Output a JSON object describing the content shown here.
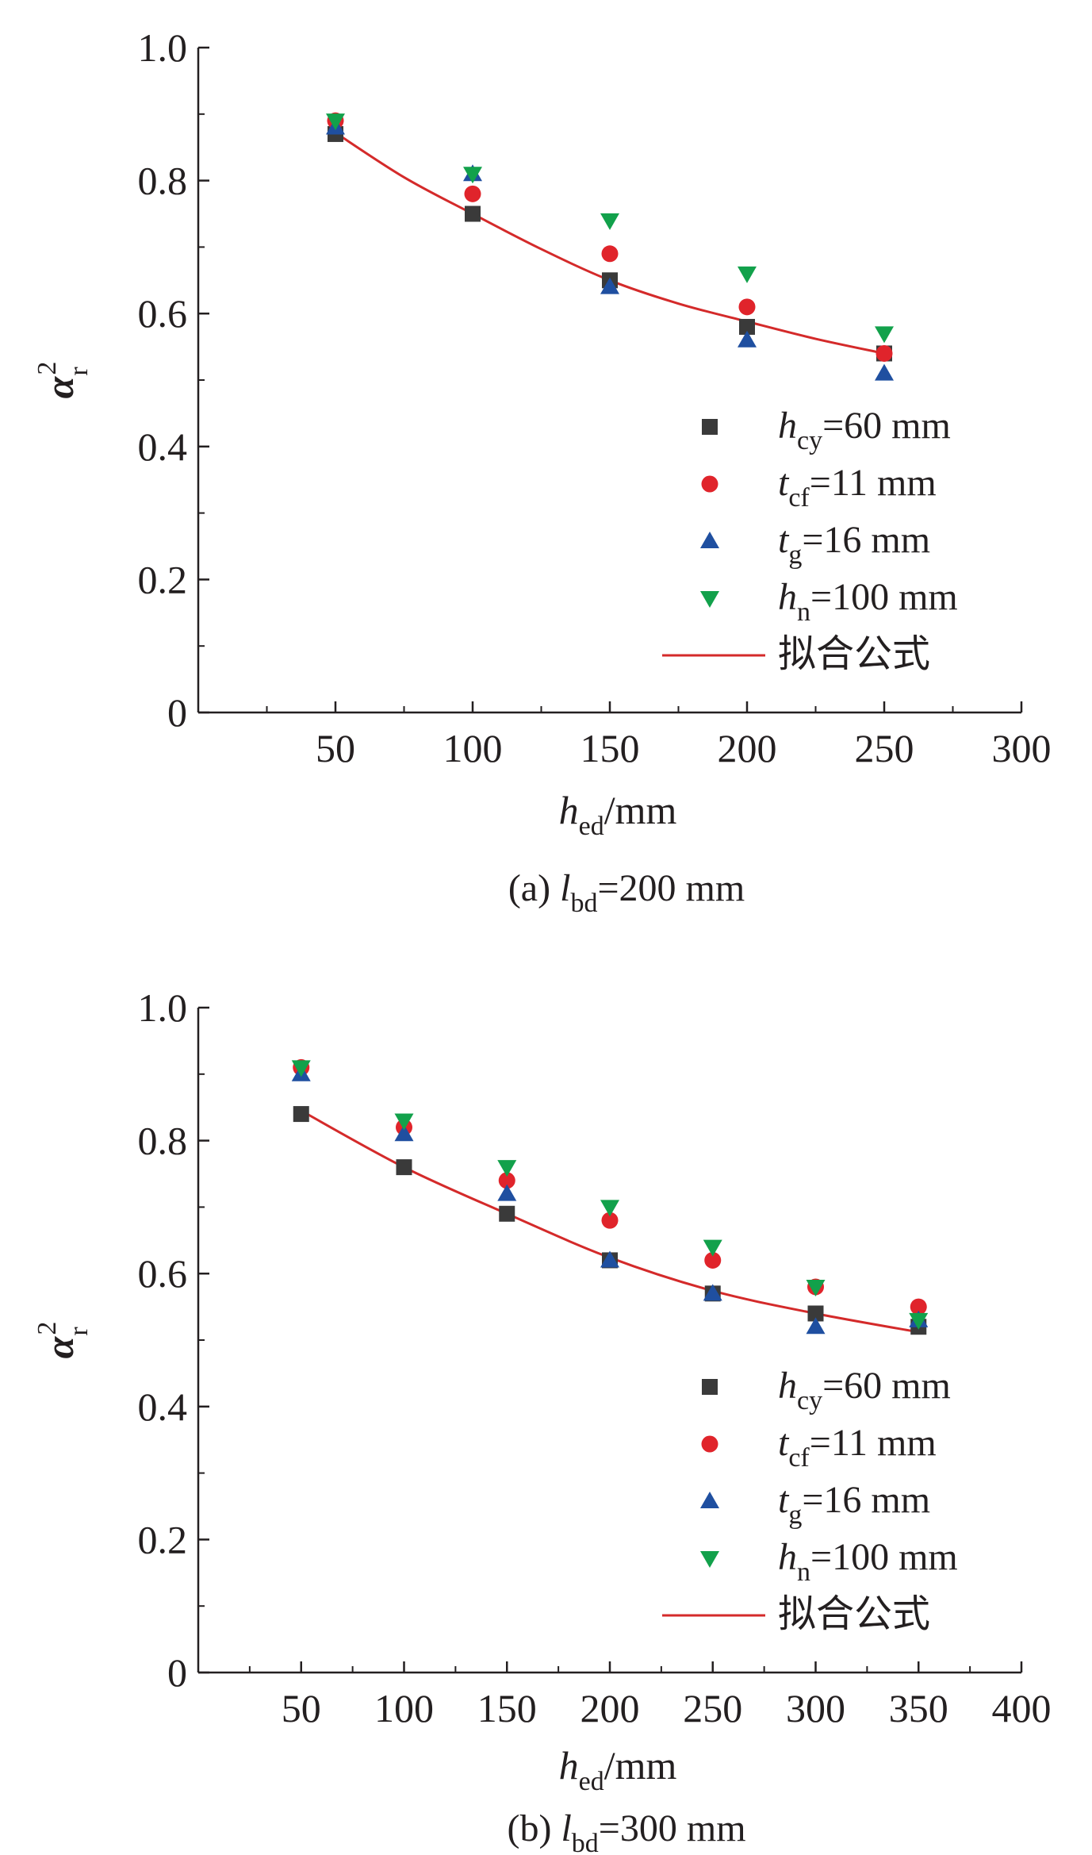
{
  "chart_data": [
    {
      "type": "scatter",
      "caption": {
        "prefix": "(a) ",
        "var": "l",
        "sub": "bd",
        "suffix": "=200 mm"
      },
      "xlabel": {
        "var": "h",
        "sub": "ed",
        "unit": "/mm"
      },
      "ylabel": {
        "var": "α",
        "sup": "2",
        "sub": "r"
      },
      "xlim": [
        0,
        300
      ],
      "ylim": [
        0,
        1.0
      ],
      "xticks": [
        50,
        100,
        150,
        200,
        250,
        300
      ],
      "yticks": [
        0,
        0.2,
        0.4,
        0.6,
        0.8,
        1.0
      ],
      "ytick_labels": [
        "0",
        "0.2",
        "0.4",
        "0.6",
        "0.8",
        "1.0"
      ],
      "grid": false,
      "legend_position": "bottom-right",
      "series": [
        {
          "legend": {
            "var": "h",
            "sub": "cy",
            "rest": "=60 mm"
          },
          "marker": "square",
          "color": "#3a3a3a",
          "x": [
            50,
            100,
            150,
            200,
            250
          ],
          "y": [
            0.87,
            0.75,
            0.65,
            0.58,
            0.54
          ]
        },
        {
          "legend": {
            "var": "t",
            "sub": "cf",
            "rest": "=11 mm"
          },
          "marker": "circle",
          "color": "#e0242b",
          "x": [
            50,
            100,
            150,
            200,
            250
          ],
          "y": [
            0.89,
            0.78,
            0.69,
            0.61,
            0.54
          ]
        },
        {
          "legend": {
            "var": "t",
            "sub": "g",
            "rest": "=16 mm"
          },
          "marker": "triangle-up",
          "color": "#1f4fa0",
          "x": [
            50,
            100,
            150,
            200,
            250
          ],
          "y": [
            0.88,
            0.81,
            0.64,
            0.56,
            0.51
          ]
        },
        {
          "legend": {
            "var": "h",
            "sub": "n",
            "rest": "=100 mm"
          },
          "marker": "triangle-down",
          "color": "#12a14b",
          "x": [
            50,
            100,
            150,
            200,
            250
          ],
          "y": [
            0.89,
            0.81,
            0.74,
            0.66,
            0.57
          ]
        }
      ],
      "fit": {
        "label": "拟合公式",
        "color": "#d42a2a",
        "x": [
          50,
          75,
          100,
          125,
          150,
          175,
          200,
          225,
          250
        ],
        "y": [
          0.872,
          0.805,
          0.75,
          0.697,
          0.65,
          0.615,
          0.588,
          0.562,
          0.54
        ]
      }
    },
    {
      "type": "scatter",
      "caption": {
        "prefix": "(b) ",
        "var": "l",
        "sub": "bd",
        "suffix": "=300 mm"
      },
      "xlabel": {
        "var": "h",
        "sub": "ed",
        "unit": "/mm"
      },
      "ylabel": {
        "var": "α",
        "sup": "2",
        "sub": "r"
      },
      "xlim": [
        0,
        400
      ],
      "ylim": [
        0,
        1.0
      ],
      "xticks": [
        50,
        100,
        150,
        200,
        250,
        300,
        350,
        400
      ],
      "yticks": [
        0,
        0.2,
        0.4,
        0.6,
        0.8,
        1.0
      ],
      "ytick_labels": [
        "0",
        "0.2",
        "0.4",
        "0.6",
        "0.8",
        "1.0"
      ],
      "grid": false,
      "legend_position": "bottom-right",
      "series": [
        {
          "legend": {
            "var": "h",
            "sub": "cy",
            "rest": "=60 mm"
          },
          "marker": "square",
          "color": "#3a3a3a",
          "x": [
            50,
            100,
            150,
            200,
            250,
            300,
            350
          ],
          "y": [
            0.84,
            0.76,
            0.69,
            0.62,
            0.57,
            0.54,
            0.52
          ]
        },
        {
          "legend": {
            "var": "t",
            "sub": "cf",
            "rest": "=11 mm"
          },
          "marker": "circle",
          "color": "#e0242b",
          "x": [
            50,
            100,
            150,
            200,
            250,
            300,
            350
          ],
          "y": [
            0.91,
            0.82,
            0.74,
            0.68,
            0.62,
            0.58,
            0.55
          ]
        },
        {
          "legend": {
            "var": "t",
            "sub": "g",
            "rest": "=16 mm"
          },
          "marker": "triangle-up",
          "color": "#1f4fa0",
          "x": [
            50,
            100,
            150,
            200,
            250,
            300,
            350
          ],
          "y": [
            0.9,
            0.81,
            0.72,
            0.62,
            0.57,
            0.52,
            0.53
          ]
        },
        {
          "legend": {
            "var": "h",
            "sub": "n",
            "rest": "=100 mm"
          },
          "marker": "triangle-down",
          "color": "#12a14b",
          "x": [
            50,
            100,
            150,
            200,
            250,
            300,
            350
          ],
          "y": [
            0.91,
            0.83,
            0.76,
            0.7,
            0.64,
            0.58,
            0.53
          ]
        }
      ],
      "fit": {
        "label": "拟合公式",
        "color": "#d42a2a",
        "x": [
          50,
          100,
          150,
          200,
          250,
          300,
          350
        ],
        "y": [
          0.845,
          0.76,
          0.69,
          0.624,
          0.574,
          0.54,
          0.512
        ]
      }
    }
  ]
}
